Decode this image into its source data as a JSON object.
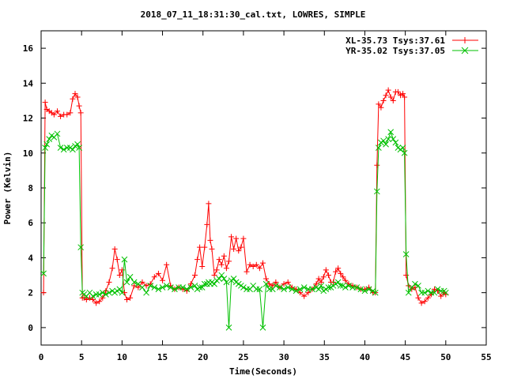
{
  "chart_data": {
    "type": "line",
    "title": "2018_07_11_18:31:30_cal.txt, LOWRES, SIMPLE",
    "xlabel": "Time(Seconds)",
    "ylabel": "Power (Kelvin)",
    "xlim": [
      0,
      55
    ],
    "ylim": [
      -1,
      17
    ],
    "xticks": [
      0,
      5,
      10,
      15,
      20,
      25,
      30,
      35,
      40,
      45,
      50,
      55
    ],
    "yticks": [
      0,
      2,
      4,
      6,
      8,
      10,
      12,
      14,
      16
    ],
    "grid": false,
    "legend_position": "top-right",
    "series": [
      {
        "name": "XL-35.73 Tsys:37.61",
        "color": "#ff0000",
        "marker": "plus",
        "x": [
          0.3,
          0.5,
          0.7,
          1.0,
          1.3,
          1.6,
          2.0,
          2.4,
          2.8,
          3.2,
          3.6,
          3.9,
          4.2,
          4.5,
          4.7,
          4.9,
          5.1,
          5.3,
          5.6,
          6.0,
          6.4,
          6.8,
          7.2,
          7.6,
          8.0,
          8.4,
          8.8,
          9.1,
          9.4,
          9.7,
          10.0,
          10.3,
          10.6,
          11.0,
          11.5,
          12.0,
          12.5,
          13.0,
          13.5,
          14.0,
          14.5,
          15.0,
          15.5,
          16.0,
          16.5,
          17.0,
          17.5,
          18.0,
          18.5,
          19.0,
          19.3,
          19.6,
          19.9,
          20.2,
          20.5,
          20.7,
          20.9,
          21.1,
          21.4,
          21.7,
          22.0,
          22.3,
          22.6,
          22.9,
          23.2,
          23.5,
          23.8,
          24.1,
          24.4,
          24.7,
          25.0,
          25.4,
          25.8,
          26.2,
          26.6,
          27.0,
          27.4,
          27.8,
          28.2,
          28.6,
          29.0,
          29.5,
          30.0,
          30.5,
          31.0,
          31.5,
          32.0,
          32.5,
          33.0,
          33.5,
          34.0,
          34.3,
          34.6,
          34.9,
          35.2,
          35.5,
          35.8,
          36.1,
          36.4,
          36.7,
          37.0,
          37.3,
          37.6,
          38.0,
          38.5,
          39.0,
          39.5,
          40.0,
          40.5,
          41.0,
          41.3,
          41.5,
          41.7,
          42.0,
          42.3,
          42.6,
          42.9,
          43.2,
          43.5,
          43.8,
          44.1,
          44.4,
          44.7,
          44.9,
          45.1,
          45.4,
          45.8,
          46.2,
          46.6,
          47.0,
          47.4,
          47.8,
          48.2,
          48.6,
          49.0,
          49.4,
          49.8,
          50.0
        ],
        "y": [
          2.0,
          12.9,
          12.5,
          12.4,
          12.3,
          12.2,
          12.4,
          12.1,
          12.2,
          12.2,
          12.3,
          13.1,
          13.4,
          13.2,
          12.7,
          12.3,
          1.7,
          1.7,
          1.6,
          1.7,
          1.6,
          1.4,
          1.5,
          1.7,
          2.1,
          2.6,
          3.4,
          4.5,
          3.9,
          3.0,
          3.3,
          2.0,
          1.6,
          1.7,
          2.4,
          2.3,
          2.6,
          2.4,
          2.5,
          2.9,
          3.1,
          2.7,
          3.6,
          2.4,
          2.2,
          2.3,
          2.2,
          2.1,
          2.5,
          3.0,
          3.9,
          4.6,
          3.5,
          4.6,
          5.9,
          7.1,
          5.0,
          4.5,
          3.0,
          3.3,
          3.9,
          3.6,
          4.1,
          3.4,
          3.8,
          5.2,
          4.5,
          5.1,
          4.4,
          4.6,
          5.1,
          3.2,
          3.6,
          3.5,
          3.6,
          3.4,
          3.7,
          2.8,
          2.5,
          2.4,
          2.6,
          2.3,
          2.5,
          2.6,
          2.3,
          2.2,
          2.0,
          1.8,
          2.0,
          2.2,
          2.5,
          2.8,
          2.6,
          2.9,
          3.3,
          3.0,
          2.6,
          2.6,
          3.2,
          3.4,
          3.1,
          2.9,
          2.7,
          2.5,
          2.4,
          2.3,
          2.2,
          2.2,
          2.3,
          2.0,
          2.0,
          9.3,
          12.8,
          12.6,
          13.0,
          13.3,
          13.6,
          13.2,
          13.0,
          13.5,
          13.5,
          13.3,
          13.4,
          13.2,
          3.0,
          2.4,
          2.2,
          2.3,
          1.7,
          1.4,
          1.5,
          1.7,
          1.9,
          2.2,
          2.1,
          1.8,
          2.0,
          1.9
        ]
      },
      {
        "name": "YR-35.02 Tsys:37.05",
        "color": "#00c000",
        "marker": "cross",
        "x": [
          0.3,
          0.5,
          0.7,
          1.0,
          1.3,
          1.6,
          2.0,
          2.4,
          2.8,
          3.2,
          3.6,
          3.9,
          4.2,
          4.5,
          4.7,
          4.9,
          5.1,
          5.3,
          5.6,
          6.0,
          6.4,
          6.8,
          7.2,
          7.6,
          8.0,
          8.4,
          8.8,
          9.1,
          9.4,
          9.7,
          10.0,
          10.3,
          10.6,
          11.0,
          11.5,
          12.0,
          12.5,
          13.0,
          13.5,
          14.0,
          14.5,
          15.0,
          15.5,
          16.0,
          16.5,
          17.0,
          17.5,
          18.0,
          18.5,
          19.0,
          19.3,
          19.6,
          19.9,
          20.2,
          20.5,
          20.7,
          20.9,
          21.1,
          21.4,
          21.7,
          22.0,
          22.3,
          22.6,
          22.9,
          23.2,
          23.5,
          23.8,
          24.1,
          24.4,
          24.7,
          25.0,
          25.4,
          25.8,
          26.2,
          26.6,
          27.0,
          27.4,
          27.8,
          28.2,
          28.6,
          29.0,
          29.5,
          30.0,
          30.5,
          31.0,
          31.5,
          32.0,
          32.5,
          33.0,
          33.5,
          34.0,
          34.3,
          34.6,
          34.9,
          35.2,
          35.5,
          35.8,
          36.1,
          36.4,
          36.7,
          37.0,
          37.3,
          37.6,
          38.0,
          38.5,
          39.0,
          39.5,
          40.0,
          40.5,
          41.0,
          41.3,
          41.5,
          41.7,
          42.0,
          42.3,
          42.6,
          42.9,
          43.2,
          43.5,
          43.8,
          44.1,
          44.4,
          44.7,
          44.9,
          45.1,
          45.4,
          45.8,
          46.2,
          46.6,
          47.0,
          47.4,
          47.8,
          48.2,
          48.6,
          49.0,
          49.4,
          49.8,
          50.0
        ],
        "y": [
          3.1,
          10.3,
          10.5,
          10.8,
          11.0,
          10.9,
          11.1,
          10.3,
          10.2,
          10.3,
          10.3,
          10.2,
          10.4,
          10.5,
          10.3,
          4.6,
          2.0,
          1.9,
          1.8,
          2.0,
          1.8,
          1.9,
          1.9,
          2.0,
          1.9,
          2.0,
          2.1,
          2.0,
          2.1,
          2.2,
          2.0,
          3.9,
          2.6,
          2.9,
          2.6,
          2.5,
          2.3,
          2.0,
          2.4,
          2.3,
          2.2,
          2.3,
          2.4,
          2.3,
          2.2,
          2.3,
          2.3,
          2.2,
          2.3,
          2.4,
          2.2,
          2.3,
          2.3,
          2.5,
          2.5,
          2.6,
          2.5,
          2.6,
          2.5,
          2.7,
          2.8,
          3.0,
          2.8,
          2.6,
          0.0,
          2.7,
          2.8,
          2.6,
          2.5,
          2.4,
          2.3,
          2.2,
          2.2,
          2.4,
          2.2,
          2.2,
          0.0,
          2.5,
          2.2,
          2.2,
          2.4,
          2.3,
          2.2,
          2.3,
          2.2,
          2.1,
          2.2,
          2.3,
          2.2,
          2.2,
          2.3,
          2.2,
          2.4,
          2.1,
          2.2,
          2.3,
          2.3,
          2.4,
          2.5,
          2.6,
          2.4,
          2.4,
          2.3,
          2.4,
          2.3,
          2.3,
          2.2,
          2.1,
          2.2,
          2.1,
          2.0,
          7.8,
          10.3,
          10.6,
          10.7,
          10.5,
          10.8,
          11.2,
          10.8,
          10.6,
          10.3,
          10.2,
          10.3,
          10.0,
          4.2,
          2.0,
          2.3,
          2.5,
          2.4,
          2.0,
          2.0,
          2.1,
          2.0,
          2.0,
          2.2,
          2.1,
          2.1,
          2.0
        ]
      }
    ]
  }
}
